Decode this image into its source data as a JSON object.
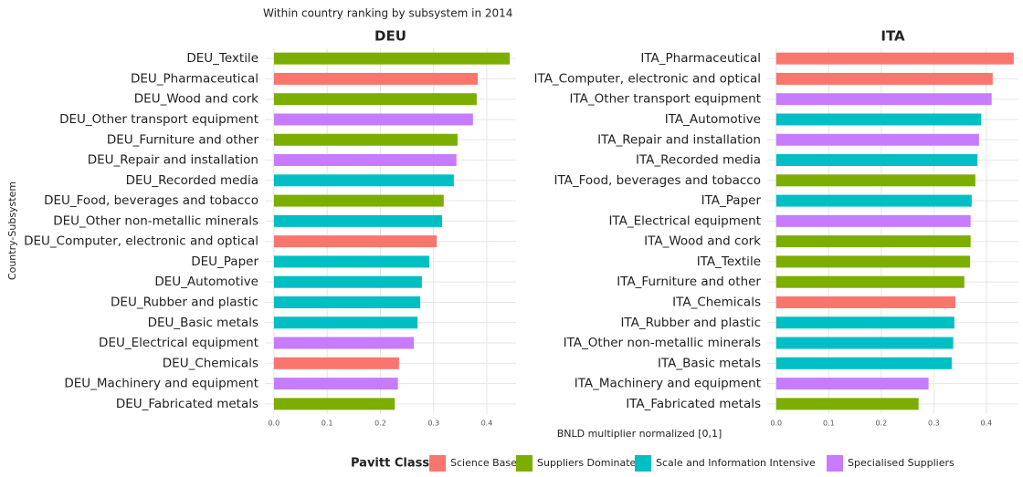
{
  "title": "Within country ranking by subsystem in 2014",
  "x_label": "BNLD multiplier normalized [0,1]",
  "y_label": "Country-Subsystem",
  "legend": {
    "title": "Pavitt Class",
    "entries": [
      {
        "name": "Science Based",
        "color": "#F8766D"
      },
      {
        "name": "Suppliers Dominated",
        "color": "#7CAE00"
      },
      {
        "name": "Scale and Information Intensive",
        "color": "#00BFC4"
      },
      {
        "name": "Specialised Suppliers",
        "color": "#C77CFF"
      }
    ]
  },
  "chart_data": [
    {
      "type": "bar",
      "orientation": "horizontal",
      "title": "DEU",
      "categories": [
        "DEU_Textile",
        "DEU_Pharmaceutical",
        "DEU_Wood and cork",
        "DEU_Other transport equipment",
        "DEU_Furniture and other",
        "DEU_Repair and installation",
        "DEU_Recorded media",
        "DEU_Food, beverages and tobacco",
        "DEU_Other non-metallic minerals",
        "DEU_Computer, electronic and optical",
        "DEU_Paper",
        "DEU_Automotive",
        "DEU_Rubber and plastic",
        "DEU_Basic metals",
        "DEU_Electrical equipment",
        "DEU_Chemicals",
        "DEU_Machinery and equipment",
        "DEU_Fabricated metals"
      ],
      "values": [
        0.443,
        0.383,
        0.381,
        0.374,
        0.345,
        0.343,
        0.338,
        0.319,
        0.316,
        0.306,
        0.292,
        0.278,
        0.275,
        0.27,
        0.263,
        0.235,
        0.233,
        0.227
      ],
      "colors": [
        "#7CAE00",
        "#F8766D",
        "#7CAE00",
        "#C77CFF",
        "#7CAE00",
        "#C77CFF",
        "#00BFC4",
        "#7CAE00",
        "#00BFC4",
        "#F8766D",
        "#00BFC4",
        "#00BFC4",
        "#00BFC4",
        "#00BFC4",
        "#C77CFF",
        "#F8766D",
        "#C77CFF",
        "#7CAE00"
      ],
      "xlim": [
        -0.017,
        0.455
      ],
      "xticks": [
        {
          "value": 0,
          "label": "0.0"
        },
        0.1,
        0.2,
        0.3,
        0.4
      ],
      "grid": true
    },
    {
      "type": "bar",
      "orientation": "horizontal",
      "title": "ITA",
      "categories": [
        "ITA_Pharmaceutical",
        "ITA_Computer, electronic and optical",
        "ITA_Other transport equipment",
        "ITA_Automotive",
        "ITA_Repair and installation",
        "ITA_Recorded media",
        "ITA_Food, beverages and tobacco",
        "ITA_Paper",
        "ITA_Electrical equipment",
        "ITA_Wood and cork",
        "ITA_Textile",
        "ITA_Furniture and other",
        "ITA_Chemicals",
        "ITA_Rubber and plastic",
        "ITA_Other non-metallic minerals",
        "ITA_Basic metals",
        "ITA_Machinery and equipment",
        "ITA_Fabricated metals"
      ],
      "values": [
        0.452,
        0.412,
        0.41,
        0.39,
        0.386,
        0.383,
        0.379,
        0.372,
        0.37,
        0.37,
        0.369,
        0.358,
        0.341,
        0.339,
        0.337,
        0.334,
        0.29,
        0.271
      ],
      "colors": [
        "#F8766D",
        "#F8766D",
        "#C77CFF",
        "#00BFC4",
        "#C77CFF",
        "#00BFC4",
        "#7CAE00",
        "#00BFC4",
        "#C77CFF",
        "#7CAE00",
        "#7CAE00",
        "#7CAE00",
        "#F8766D",
        "#00BFC4",
        "#00BFC4",
        "#00BFC4",
        "#C77CFF",
        "#7CAE00"
      ],
      "xlim": [
        -0.017,
        0.461
      ],
      "xticks": [
        {
          "value": 0,
          "label": "0.0"
        },
        0.1,
        0.2,
        0.3,
        0.4
      ],
      "grid": true
    }
  ]
}
